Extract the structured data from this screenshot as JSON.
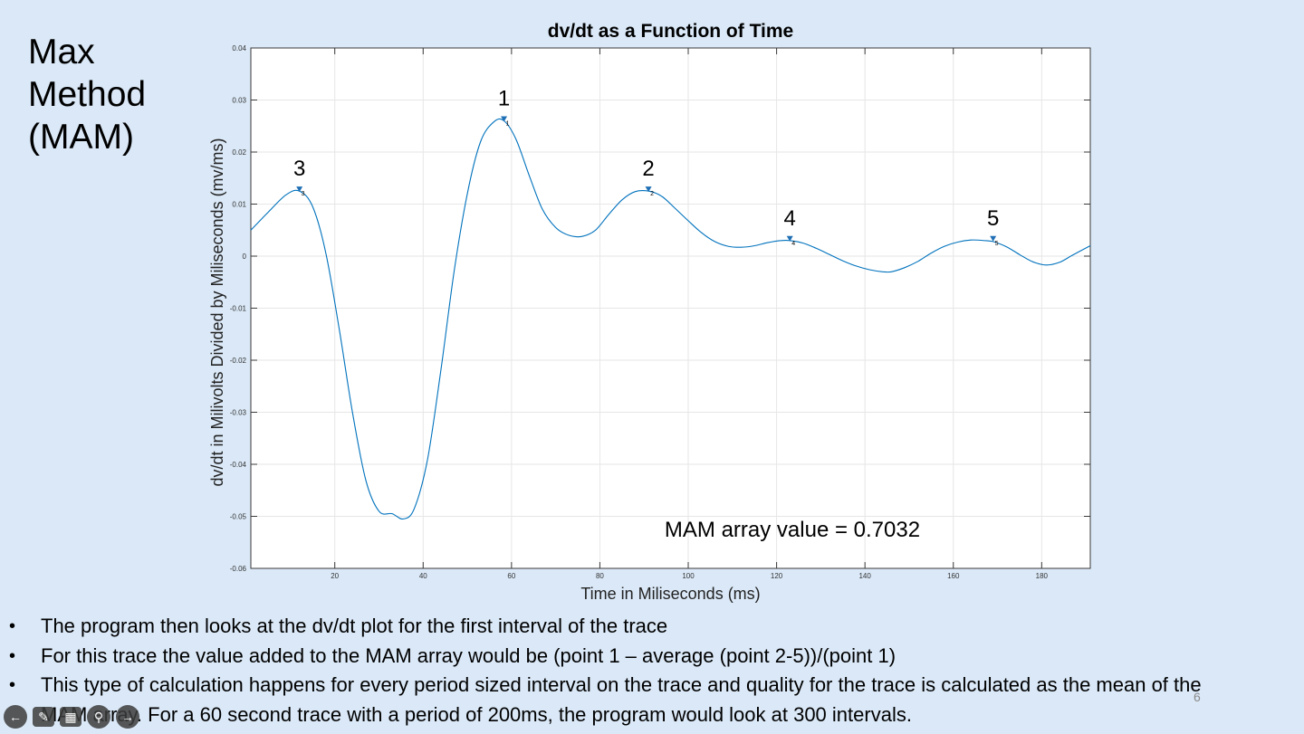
{
  "slide": {
    "title": "Max\nMethod\n(MAM)",
    "slide_number": "6",
    "bullets": [
      "The program then looks at the dv/dt plot for the first interval of the trace",
      "For this trace the value added to the MAM array would be (point 1 – average (point 2-5))/(point 1)",
      "This type of calculation happens for every period sized interval on the trace and quality for the trace is calculated as the mean of the MAM array. For a 60 second trace with a period of 200ms, the program would look at 300 intervals."
    ]
  },
  "nav_icons": [
    "back-arrow-icon",
    "pen-icon",
    "slides-grid-icon",
    "zoom-icon",
    "forward-arrow-icon"
  ],
  "chart_data": {
    "type": "line",
    "title": "dv/dt as a Function of Time",
    "xlabel": "Time in Miliseconds (ms)",
    "ylabel": "dv/dt in Milivolts Divided by Miliseconds (mv/ms)",
    "xlim": [
      1,
      191
    ],
    "ylim": [
      -0.06,
      0.04
    ],
    "x_ticks": [
      20,
      40,
      60,
      80,
      100,
      120,
      140,
      160,
      180
    ],
    "y_ticks": [
      0.04,
      0.03,
      0.02,
      0.01,
      0,
      -0.01,
      -0.02,
      -0.03,
      -0.04,
      -0.05,
      -0.06
    ],
    "y_tick_labels": [
      "0.04",
      "0.03",
      "0.02",
      "0.01",
      "0",
      "-0.01",
      "-0.02",
      "-0.03",
      "-0.04",
      "-0.05",
      "-0.06"
    ],
    "grid": true,
    "line_color": "#0072bd",
    "series": [
      {
        "x": [
          1,
          5,
          9,
          12,
          15,
          18,
          21,
          24,
          27,
          30,
          33,
          35.5,
          38,
          41,
          44,
          47,
          50,
          53,
          56,
          58.3,
          61,
          64,
          67,
          70,
          73,
          76,
          79,
          82,
          85,
          88,
          91,
          94,
          97,
          100,
          103,
          106,
          109,
          112,
          115,
          118,
          121,
          123,
          126,
          129,
          132,
          135,
          138,
          141,
          144,
          146,
          149,
          152,
          155,
          158,
          161,
          164,
          167,
          169,
          172,
          175,
          178,
          181,
          184,
          187,
          191
        ],
        "y": [
          0.005,
          0.0085,
          0.0118,
          0.0125,
          0.0095,
          0.0005,
          -0.014,
          -0.03,
          -0.043,
          -0.049,
          -0.0495,
          -0.0505,
          -0.0485,
          -0.039,
          -0.022,
          -0.003,
          0.012,
          0.022,
          0.0258,
          0.026,
          0.0225,
          0.0155,
          0.009,
          0.0055,
          0.004,
          0.0038,
          0.005,
          0.008,
          0.0108,
          0.0124,
          0.0125,
          0.0115,
          0.0092,
          0.0068,
          0.0045,
          0.0028,
          0.0019,
          0.0017,
          0.002,
          0.0026,
          0.003,
          0.003,
          0.0025,
          0.0015,
          0.0003,
          -0.0009,
          -0.0019,
          -0.0026,
          -0.003,
          -0.003,
          -0.0022,
          -0.001,
          0.0006,
          0.0019,
          0.0027,
          0.0031,
          0.003,
          0.0028,
          0.0018,
          0.0003,
          -0.0011,
          -0.0017,
          -0.0012,
          0.0002,
          0.002
        ]
      }
    ],
    "peaks": [
      {
        "label": "1",
        "x": 58.3,
        "y": 0.026
      },
      {
        "label": "2",
        "x": 91,
        "y": 0.0125
      },
      {
        "label": "3",
        "x": 12,
        "y": 0.0125
      },
      {
        "label": "4",
        "x": 123,
        "y": 0.003
      },
      {
        "label": "5",
        "x": 169,
        "y": 0.003
      }
    ],
    "annotation": "MAM array value = 0.7032"
  }
}
